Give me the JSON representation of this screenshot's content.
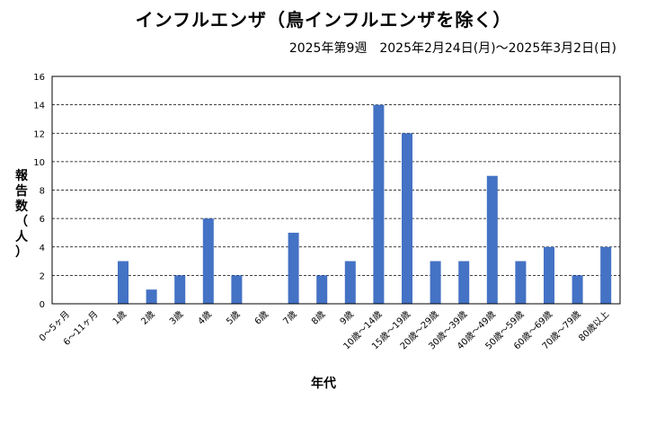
{
  "chart_data": {
    "type": "bar",
    "title": "インフルエンザ（鳥インフルエンザを除く）",
    "subtitle": "2025年第9週　2025年2月24日(月)〜2025年3月2日(日)",
    "xlabel": "年代",
    "ylabel": [
      "報",
      "告",
      "数",
      "（",
      "人",
      "）"
    ],
    "ylim": [
      0,
      16
    ],
    "yticks": [
      0,
      2,
      4,
      6,
      8,
      10,
      12,
      14,
      16
    ],
    "grid": true,
    "categories": [
      "0〜5ヶ月",
      "6〜11ヶ月",
      "1歳",
      "2歳",
      "3歳",
      "4歳",
      "5歳",
      "6歳",
      "7歳",
      "8歳",
      "9歳",
      "10歳〜14歳",
      "15歳〜19歳",
      "20歳〜29歳",
      "30歳〜39歳",
      "40歳〜49歳",
      "50歳〜59歳",
      "60歳〜69歳",
      "70歳〜79歳",
      "80歳以上"
    ],
    "values": [
      0,
      0,
      3,
      1,
      2,
      6,
      2,
      0,
      5,
      2,
      3,
      14,
      12,
      3,
      3,
      9,
      3,
      4,
      2,
      4
    ],
    "bar_color": "#4472C4"
  }
}
